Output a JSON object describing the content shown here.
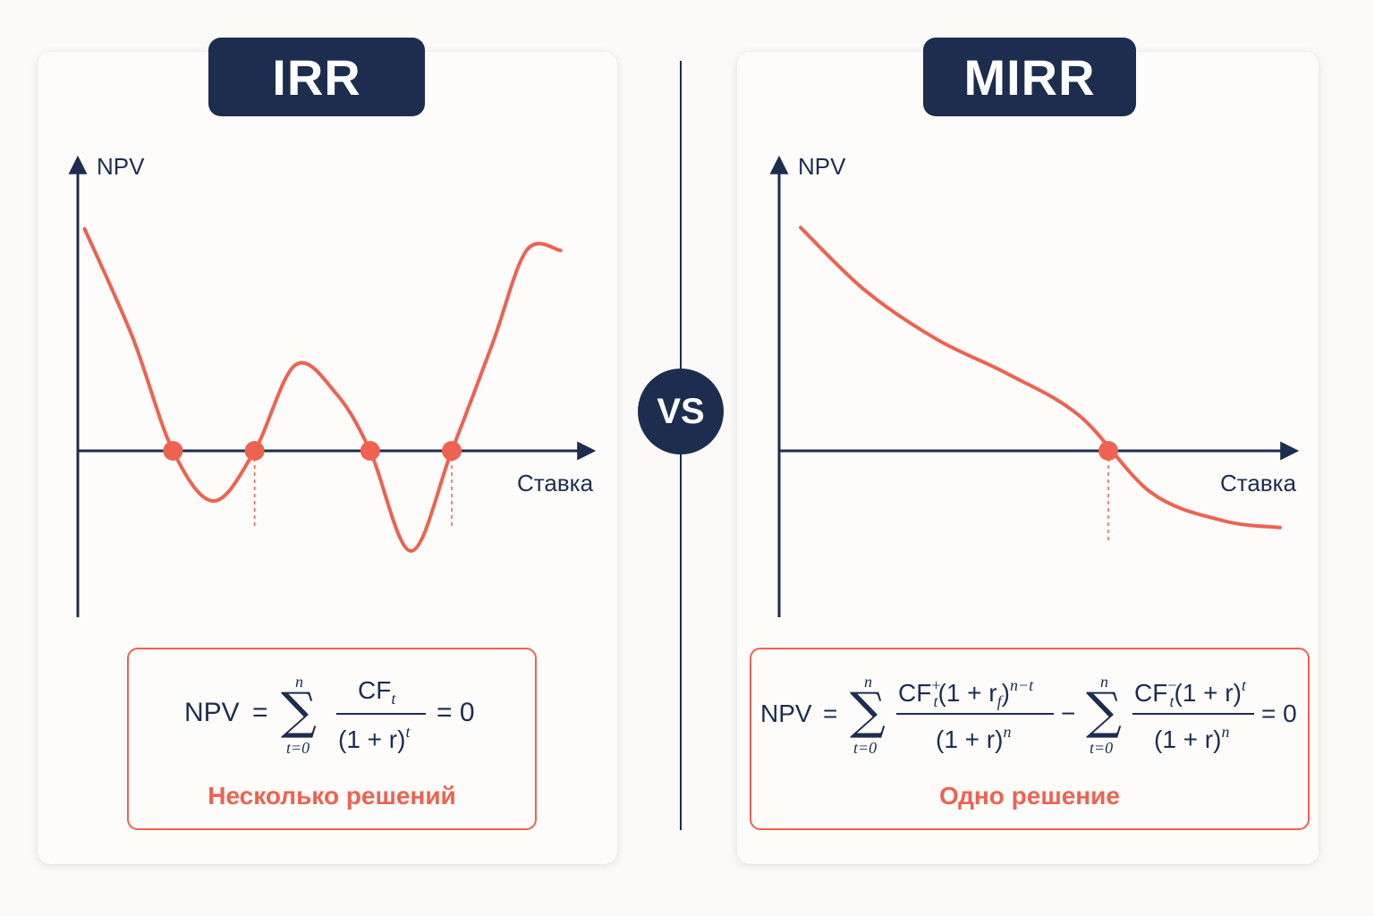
{
  "irr": {
    "title": "IRR",
    "y_axis_label": "NPV",
    "x_axis_label": "Ставка",
    "formula": {
      "lhs": "NPV",
      "eq": "=",
      "sum_symbol": "∑",
      "sum_upper": "n",
      "sum_lower": "t=0",
      "numerator": "CF",
      "numerator_sub": "t",
      "denominator": "(1 + r)",
      "denominator_sup": "t",
      "rhs": "= 0"
    },
    "verdict": "Несколько решений"
  },
  "mirr": {
    "title": "MIRR",
    "y_axis_label": "NPV",
    "x_axis_label": "Ставка",
    "formula": {
      "lhs": "NPV",
      "eq": "=",
      "sum_symbol": "∑",
      "sum_upper": "n",
      "sum_lower": "t=0",
      "term1_numerator": "CF",
      "term1_numerator_sup": "+",
      "term1_numerator_sub": "t",
      "term1_numerator_rest": "(1 + r",
      "term1_numerator_rest_sub": "f",
      "term1_numerator_rest_close": ")",
      "term1_numerator_exp": "n−t",
      "term1_denominator": "(1 + r)",
      "term1_denominator_sup": "n",
      "minus": "−",
      "term2_numerator": "CF",
      "term2_numerator_sup": "−",
      "term2_numerator_sub": "t",
      "term2_numerator_rest": "(1 + r)",
      "term2_numerator_exp": "t",
      "term2_denominator": "(1 + r)",
      "term2_denominator_sup": "n",
      "rhs": "= 0"
    },
    "verdict": "Одно решение"
  },
  "vs_label": "VS",
  "colors": {
    "navy": "#1d2d4f",
    "accent": "#ee6250",
    "background": "#fbfaf8"
  },
  "chart_data": [
    {
      "type": "line",
      "title": "IRR",
      "ylabel": "NPV",
      "xlabel": "Ставка",
      "series": [
        {
          "x": [
            0.1,
            0.8,
            1.4,
            2.0,
            2.6,
            3.2,
            3.8,
            4.3,
            4.9,
            5.5,
            6.1,
            6.6,
            7.1
          ],
          "values": [
            3.1,
            1.6,
            0.0,
            -0.7,
            0.0,
            1.2,
            0.8,
            0.0,
            -1.4,
            0.0,
            1.5,
            2.8,
            2.8
          ]
        }
      ],
      "roots": [
        1.4,
        2.6,
        4.3,
        5.5
      ]
    },
    {
      "type": "line",
      "title": "MIRR",
      "ylabel": "NPV",
      "xlabel": "Ставка",
      "series": [
        {
          "x": [
            0.3,
            1.2,
            2.2,
            3.2,
            4.2,
            5.2,
            6.2,
            7.0
          ],
          "values": [
            3.2,
            2.3,
            1.6,
            1.1,
            0.5,
            -0.6,
            -1.0,
            -1.1
          ]
        }
      ],
      "roots": [
        4.6
      ]
    }
  ]
}
